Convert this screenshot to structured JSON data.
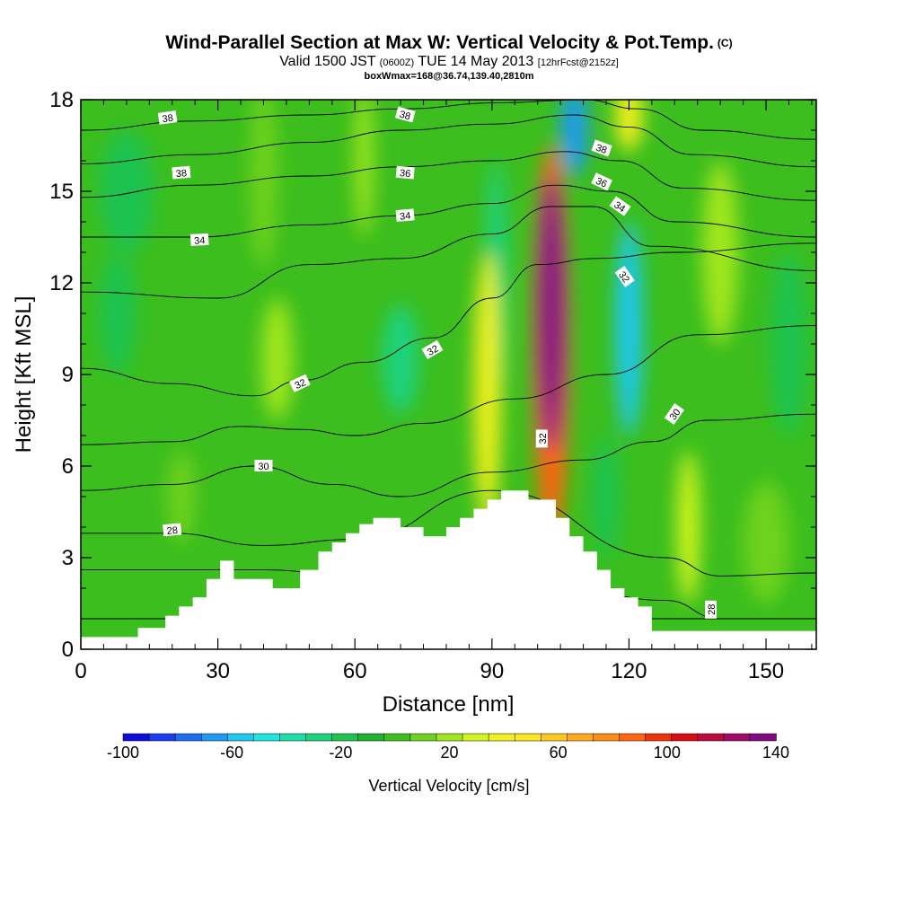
{
  "header": {
    "title": "Wind-Parallel Section at Max W: Vertical Velocity & Pot.Temp.",
    "title_tag": "(C)",
    "valid_prefix": "Valid 1500 JST",
    "valid_utc": "(0600Z)",
    "valid_date": "TUE 14 May 2013",
    "forecast": "[12hrFcst@2152z]",
    "box_info": "boxWmax=168@36.74,139.40,2810m"
  },
  "chart_data": {
    "type": "heatmap",
    "title": "Wind-Parallel Section at Max W: Vertical Velocity & Pot.Temp.",
    "xlabel": "Distance [nm]",
    "ylabel": "Height [Kft MSL]",
    "xlim": [
      0,
      161
    ],
    "ylim": [
      0,
      18
    ],
    "x_ticks": [
      0,
      30,
      60,
      90,
      120,
      150
    ],
    "y_ticks": [
      0,
      3,
      6,
      9,
      12,
      15,
      18
    ],
    "grid": false,
    "colorbar": {
      "label": "Vertical Velocity [cm/s]",
      "placement": "bottom",
      "min": -100,
      "max": 140,
      "step": 10,
      "tick_labels": [
        "-100",
        "-60",
        "-20",
        "20",
        "60",
        "100",
        "140"
      ],
      "colors": [
        "#0d0ddc",
        "#1a3df0",
        "#1e6cf0",
        "#1e9bf0",
        "#1ec8f0",
        "#1ee6e0",
        "#1eddaa",
        "#1ed27d",
        "#1ec350",
        "#1eb430",
        "#3cbe1e",
        "#6ed21e",
        "#a0e61e",
        "#d2f51e",
        "#f0f01e",
        "#ffe61e",
        "#ffc81e",
        "#ffaa1e",
        "#ff8c14",
        "#ff640f",
        "#f0320a",
        "#dc0a14",
        "#be0a3c",
        "#a00a64",
        "#820a82"
      ]
    },
    "terrain_profile": {
      "description_units": "x in nm, top height in Kft",
      "x": [
        0,
        12.5,
        12.5,
        18.5,
        18.5,
        21.5,
        21.5,
        24.5,
        24.5,
        27.5,
        27.5,
        30.5,
        30.5,
        33.5,
        33.5,
        42,
        42,
        45,
        45,
        48,
        48,
        52,
        52,
        55,
        55,
        58,
        58,
        61,
        61,
        64,
        64,
        67,
        67,
        70,
        70,
        75,
        75,
        80,
        80,
        83,
        83,
        86,
        86,
        89,
        89,
        92,
        92,
        95,
        95,
        98,
        98,
        104,
        104,
        107,
        107,
        110,
        110,
        113,
        113,
        116,
        116,
        119,
        119,
        122,
        122,
        125,
        125,
        155,
        155,
        161
      ],
      "top": [
        0.4,
        0.4,
        0.7,
        0.7,
        1.1,
        1.1,
        1.4,
        1.4,
        1.7,
        1.7,
        2.3,
        2.3,
        2.9,
        2.9,
        2.3,
        2.3,
        2.0,
        2.0,
        2.0,
        2.0,
        2.6,
        2.6,
        3.2,
        3.2,
        3.5,
        3.5,
        3.8,
        3.8,
        4.1,
        4.1,
        4.3,
        4.3,
        4.3,
        4.3,
        4.0,
        4.0,
        3.7,
        3.7,
        4.0,
        4.0,
        4.3,
        4.3,
        4.6,
        4.6,
        4.9,
        4.9,
        5.2,
        5.2,
        5.2,
        5.2,
        4.9,
        4.9,
        4.3,
        4.3,
        3.7,
        3.7,
        3.2,
        3.2,
        2.6,
        2.6,
        2.0,
        2.0,
        1.7,
        1.7,
        1.4,
        1.4,
        0.6,
        0.6,
        0.6,
        0.6
      ]
    },
    "vertical_velocity_features": [
      {
        "x": 103,
        "y": 11.0,
        "value": 140,
        "rx": 3,
        "ry": 4.5
      },
      {
        "x": 103,
        "y": 10.0,
        "value": 90,
        "rx": 4,
        "ry": 6.5
      },
      {
        "x": 89,
        "y": 8.5,
        "value": 40,
        "rx": 3,
        "ry": 4.5
      },
      {
        "x": 133,
        "y": 4.0,
        "value": 35,
        "rx": 2.5,
        "ry": 2.5
      },
      {
        "x": 120,
        "y": 17.5,
        "value": 40,
        "rx": 3,
        "ry": 1.2
      },
      {
        "x": 108,
        "y": 17.0,
        "value": -70,
        "rx": 3,
        "ry": 1.5
      },
      {
        "x": 120,
        "y": 10.5,
        "value": -55,
        "rx": 3,
        "ry": 3.5
      },
      {
        "x": 43,
        "y": 9.5,
        "value": 25,
        "rx": 3.5,
        "ry": 2
      },
      {
        "x": 22,
        "y": 5.0,
        "value": 12,
        "rx": 3,
        "ry": 1.5
      },
      {
        "x": 70,
        "y": 9.5,
        "value": -25,
        "rx": 4,
        "ry": 1.8
      },
      {
        "x": 91,
        "y": 12.0,
        "value": -25,
        "rx": 2.5,
        "ry": 4
      },
      {
        "x": 10,
        "y": 15.0,
        "value": -20,
        "rx": 6,
        "ry": 2
      },
      {
        "x": 8,
        "y": 11.0,
        "value": -18,
        "rx": 4,
        "ry": 2
      },
      {
        "x": 150,
        "y": 3.5,
        "value": 15,
        "rx": 5,
        "ry": 2
      },
      {
        "x": 140,
        "y": 13.0,
        "value": 20,
        "rx": 4,
        "ry": 3
      },
      {
        "x": 155,
        "y": 10.0,
        "value": -15,
        "rx": 4,
        "ry": 3
      },
      {
        "x": 115,
        "y": 5.0,
        "value": -20,
        "rx": 3,
        "ry": 2
      },
      {
        "x": 40,
        "y": 15.5,
        "value": 15,
        "rx": 3,
        "ry": 3
      },
      {
        "x": 62,
        "y": 16.0,
        "value": 20,
        "rx": 2,
        "ry": 2.5
      }
    ],
    "theta_contours": [
      {
        "x": [
          0,
          30,
          60,
          80,
          100,
          115,
          130,
          161
        ],
        "y": [
          1.0,
          1.0,
          1.0,
          1.0,
          1.0,
          1.0,
          1.0,
          1.0
        ]
      },
      {
        "x": [
          0,
          40,
          60,
          90,
          128,
          140,
          150,
          161
        ],
        "y": [
          2.6,
          2.6,
          2.4,
          3.0,
          1.6,
          1.0,
          1.0,
          1.0
        ]
      },
      {
        "x": [
          0,
          20,
          40,
          60,
          90,
          128,
          140,
          161
        ],
        "y": [
          3.8,
          3.8,
          3.4,
          3.6,
          5.2,
          3.0,
          2.4,
          2.5
        ]
      },
      {
        "x": [
          0,
          20,
          38,
          55,
          70,
          90,
          110,
          125,
          137,
          161
        ],
        "y": [
          5.2,
          5.4,
          6.0,
          5.4,
          5.0,
          5.8,
          6.2,
          6.8,
          7.5,
          7.7
        ]
      },
      {
        "x": [
          0,
          20,
          35,
          48,
          60,
          75,
          95,
          115,
          135,
          161
        ],
        "y": [
          6.7,
          6.8,
          7.3,
          7.2,
          7.0,
          7.4,
          8.2,
          9.0,
          10.3,
          10.6
        ]
      },
      {
        "x": [
          0,
          20,
          38,
          48,
          62,
          77,
          90,
          100,
          113,
          130,
          161
        ],
        "y": [
          9.2,
          8.7,
          8.3,
          8.8,
          9.4,
          10.2,
          11.5,
          12.6,
          12.8,
          13.0,
          13.3
        ]
      },
      {
        "x": [
          0,
          30,
          50,
          70,
          90,
          103,
          112,
          125,
          161
        ],
        "y": [
          11.7,
          11.5,
          12.6,
          12.8,
          13.6,
          14.5,
          14.5,
          13.2,
          12.4
        ]
      },
      {
        "x": [
          0,
          25,
          50,
          70,
          90,
          104,
          116,
          130,
          161
        ],
        "y": [
          13.5,
          13.5,
          13.9,
          14.2,
          14.6,
          15.2,
          15.0,
          14.0,
          13.5
        ]
      },
      {
        "x": [
          0,
          25,
          50,
          70,
          90,
          106,
          118,
          132,
          161
        ],
        "y": [
          14.8,
          15.2,
          15.5,
          15.8,
          16.0,
          16.3,
          16.0,
          15.1,
          14.7
        ]
      },
      {
        "x": [
          0,
          25,
          50,
          70,
          90,
          108,
          120,
          134,
          161
        ],
        "y": [
          15.9,
          16.2,
          16.6,
          17.0,
          17.2,
          17.5,
          17.1,
          16.2,
          15.8
        ]
      },
      {
        "x": [
          0,
          25,
          50,
          70,
          92,
          110,
          122,
          136,
          161
        ],
        "y": [
          17.0,
          17.3,
          17.5,
          17.7,
          17.9,
          18.0,
          17.7,
          17.0,
          16.7
        ]
      }
    ],
    "contour_labels": [
      {
        "text": "38",
        "x": 19,
        "y": 17.4,
        "angle": -8
      },
      {
        "text": "38",
        "x": 71,
        "y": 17.5,
        "angle": 15
      },
      {
        "text": "38",
        "x": 22,
        "y": 15.6,
        "angle": -5
      },
      {
        "text": "36",
        "x": 71,
        "y": 15.6,
        "angle": 5
      },
      {
        "text": "38",
        "x": 114,
        "y": 16.4,
        "angle": 20
      },
      {
        "text": "36",
        "x": 114,
        "y": 15.3,
        "angle": 25
      },
      {
        "text": "34",
        "x": 26,
        "y": 13.4,
        "angle": -3
      },
      {
        "text": "34",
        "x": 71,
        "y": 14.2,
        "angle": -5
      },
      {
        "text": "34",
        "x": 118,
        "y": 14.5,
        "angle": 35
      },
      {
        "text": "32",
        "x": 119,
        "y": 12.2,
        "angle": 55
      },
      {
        "text": "32",
        "x": 48,
        "y": 8.7,
        "angle": -25
      },
      {
        "text": "32",
        "x": 77,
        "y": 9.8,
        "angle": -30
      },
      {
        "text": "32",
        "x": 101,
        "y": 6.9,
        "angle": -90
      },
      {
        "text": "30",
        "x": 130,
        "y": 7.7,
        "angle": -55
      },
      {
        "text": "30",
        "x": 40,
        "y": 6.0,
        "angle": 0
      },
      {
        "text": "28",
        "x": 20,
        "y": 3.9,
        "angle": -5
      },
      {
        "text": "28",
        "x": 138,
        "y": 1.3,
        "angle": -90
      }
    ]
  }
}
